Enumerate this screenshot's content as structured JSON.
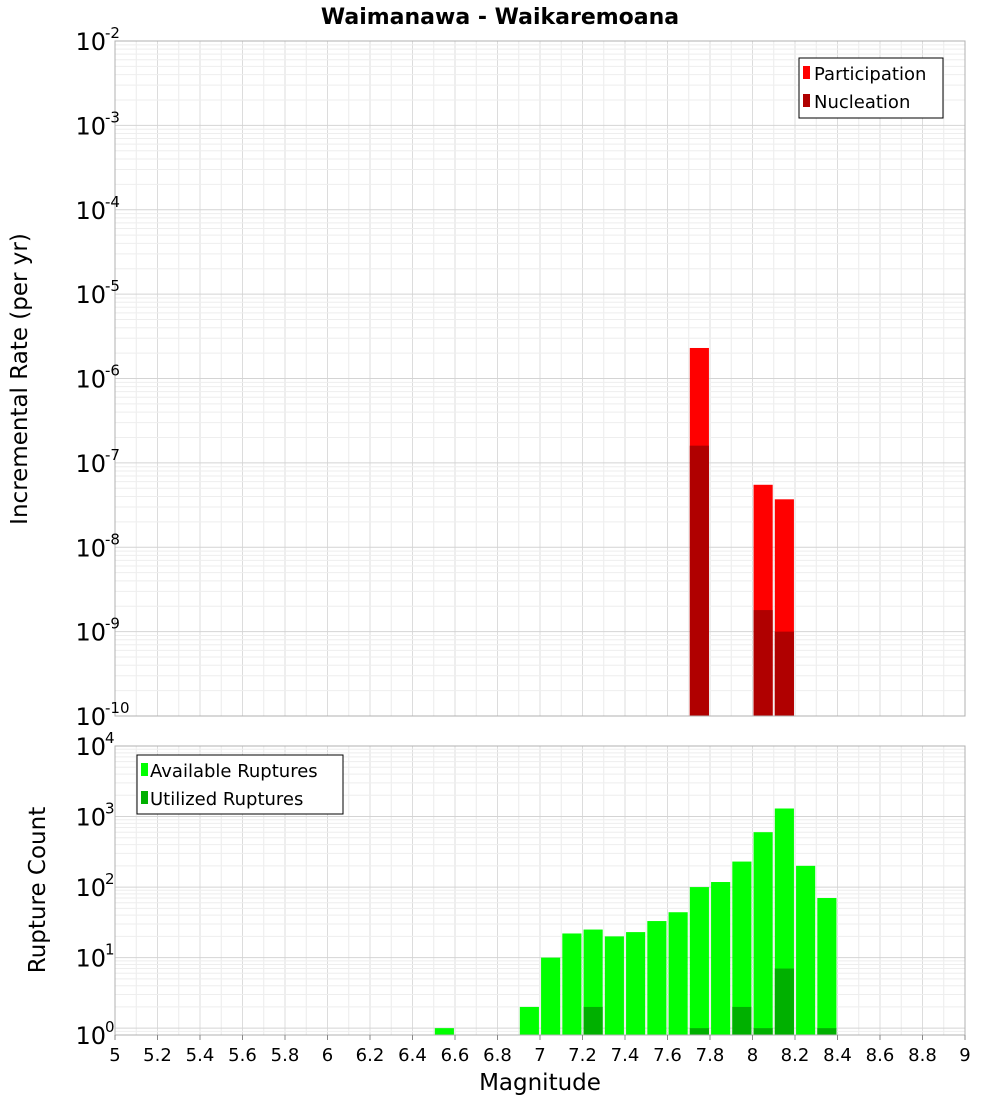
{
  "chart_data": [
    {
      "type": "bar",
      "title": "Waimanawa - Waikaremoana",
      "xlabel": "",
      "ylabel": "Incremental Rate (per yr)",
      "yscale": "log",
      "ylim": [
        1e-10,
        0.01
      ],
      "xlim": [
        5,
        9
      ],
      "grid": true,
      "legend_position": "top-right",
      "ytick_labels": [
        {
          "base": "10",
          "exp": "-10"
        },
        {
          "base": "10",
          "exp": "-9"
        },
        {
          "base": "10",
          "exp": "-8"
        },
        {
          "base": "10",
          "exp": "-7"
        },
        {
          "base": "10",
          "exp": "-6"
        },
        {
          "base": "10",
          "exp": "-5"
        },
        {
          "base": "10",
          "exp": "-4"
        },
        {
          "base": "10",
          "exp": "-3"
        },
        {
          "base": "10",
          "exp": "-2"
        }
      ],
      "series": [
        {
          "name": "Participation",
          "color": "#ff0000",
          "points": [
            {
              "x": 7.75,
              "y": 2.3e-06
            },
            {
              "x": 8.05,
              "y": 5.5e-08
            },
            {
              "x": 8.15,
              "y": 3.7e-08
            }
          ]
        },
        {
          "name": "Nucleation",
          "color": "#b00000",
          "points": [
            {
              "x": 7.75,
              "y": 1.6e-07
            },
            {
              "x": 8.05,
              "y": 1.8e-09
            },
            {
              "x": 8.15,
              "y": 1e-09
            }
          ]
        }
      ]
    },
    {
      "type": "bar",
      "title": "",
      "xlabel": "Magnitude",
      "ylabel": "Rupture Count",
      "yscale": "log",
      "ylim": [
        0.8,
        10000.0
      ],
      "xlim": [
        5,
        9
      ],
      "grid": true,
      "legend_position": "top-left",
      "xtick_labels": [
        "5",
        "5.2",
        "5.4",
        "5.6",
        "5.8",
        "6",
        "6.2",
        "6.4",
        "6.6",
        "6.8",
        "7",
        "7.2",
        "7.4",
        "7.6",
        "7.8",
        "8",
        "8.2",
        "8.4",
        "8.6",
        "8.8",
        "9"
      ],
      "ytick_labels": [
        {
          "base": "10",
          "exp": "0"
        },
        {
          "base": "10",
          "exp": "1"
        },
        {
          "base": "10",
          "exp": "2"
        },
        {
          "base": "10",
          "exp": "3"
        },
        {
          "base": "10",
          "exp": "4"
        }
      ],
      "series": [
        {
          "name": "Available Ruptures",
          "color": "#00ff00",
          "points": [
            {
              "x": 6.55,
              "y": 1
            },
            {
              "x": 6.95,
              "y": 2
            },
            {
              "x": 7.05,
              "y": 10
            },
            {
              "x": 7.15,
              "y": 22
            },
            {
              "x": 7.25,
              "y": 25
            },
            {
              "x": 7.35,
              "y": 20
            },
            {
              "x": 7.45,
              "y": 23
            },
            {
              "x": 7.55,
              "y": 33
            },
            {
              "x": 7.65,
              "y": 44
            },
            {
              "x": 7.75,
              "y": 100
            },
            {
              "x": 7.85,
              "y": 118
            },
            {
              "x": 7.95,
              "y": 230
            },
            {
              "x": 8.05,
              "y": 600
            },
            {
              "x": 8.15,
              "y": 1300
            },
            {
              "x": 8.25,
              "y": 200
            },
            {
              "x": 8.35,
              "y": 70
            }
          ]
        },
        {
          "name": "Utilized Ruptures",
          "color": "#00b000",
          "points": [
            {
              "x": 7.25,
              "y": 2
            },
            {
              "x": 7.75,
              "y": 1
            },
            {
              "x": 7.95,
              "y": 2
            },
            {
              "x": 8.05,
              "y": 1
            },
            {
              "x": 8.15,
              "y": 7
            },
            {
              "x": 8.35,
              "y": 1
            }
          ]
        }
      ]
    }
  ]
}
